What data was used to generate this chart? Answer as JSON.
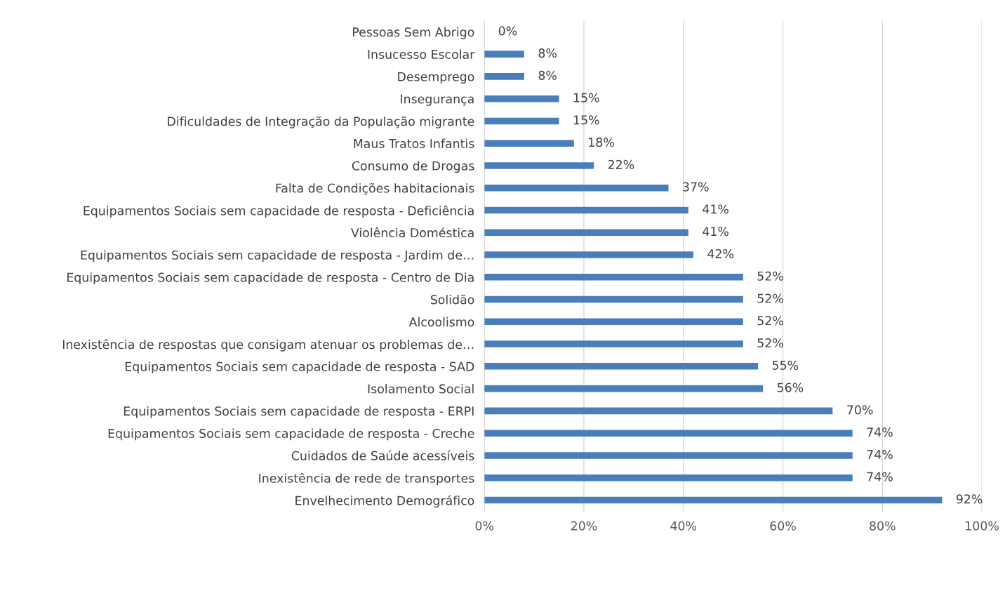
{
  "chart_data": {
    "type": "bar",
    "orientation": "horizontal",
    "categories": [
      "Pessoas Sem Abrigo",
      "Insucesso Escolar",
      "Desemprego",
      "Insegurança",
      "Dificuldades de Integração da População migrante",
      "Maus Tratos Infantis",
      "Consumo de Drogas",
      "Falta de Condições habitacionais",
      "Equipamentos Sociais sem capacidade de resposta - Deficiência",
      "Violência Doméstica",
      "Equipamentos Sociais sem capacidade de resposta - Jardim de…",
      "Equipamentos Sociais sem capacidade de resposta - Centro de Dia",
      "Solidão",
      "Alcoolismo",
      "Inexistência de respostas que consigam atenuar os problemas de…",
      "Equipamentos Sociais sem capacidade de resposta - SAD",
      "Isolamento Social",
      "Equipamentos Sociais sem capacidade de resposta - ERPI",
      "Equipamentos Sociais sem capacidade de resposta - Creche",
      "Cuidados de Saúde acessíveis",
      "Inexistência de rede de transportes",
      "Envelhecimento Demográfico"
    ],
    "values": [
      0,
      8,
      8,
      15,
      15,
      18,
      22,
      37,
      41,
      41,
      42,
      52,
      52,
      52,
      52,
      55,
      56,
      70,
      74,
      74,
      74,
      92
    ],
    "value_labels": [
      "0%",
      "8%",
      "8%",
      "15%",
      "15%",
      "18%",
      "22%",
      "37%",
      "41%",
      "41%",
      "42%",
      "52%",
      "52%",
      "52%",
      "52%",
      "55%",
      "56%",
      "70%",
      "74%",
      "74%",
      "74%",
      "92%"
    ],
    "color": "#4a7ebb",
    "xlim": [
      0,
      100
    ],
    "xticks": [
      {
        "value": 0,
        "label": "0%"
      },
      {
        "value": 20,
        "label": "20%"
      },
      {
        "value": 40,
        "label": "40%"
      },
      {
        "value": 60,
        "label": "60%"
      },
      {
        "value": 80,
        "label": "80%"
      },
      {
        "value": 100,
        "label": "100%"
      }
    ],
    "grid": "x",
    "legend": false
  }
}
